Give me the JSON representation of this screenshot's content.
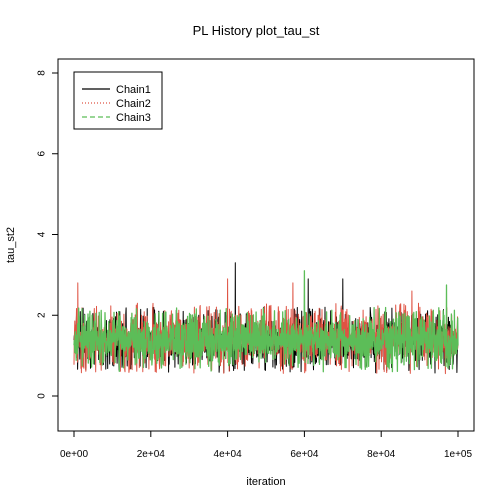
{
  "chart_data": {
    "type": "line",
    "title": "PL History plot_tau_st",
    "xlabel": "iteration",
    "ylabel": "tau_st2",
    "xlim": [
      0,
      100000
    ],
    "ylim": [
      0,
      8
    ],
    "xticks": [
      0,
      20000,
      40000,
      60000,
      80000,
      100000
    ],
    "xtick_labels": [
      "0e+00",
      "2e+04",
      "4e+04",
      "6e+04",
      "8e+04",
      "1e+05"
    ],
    "yticks": [
      0,
      2,
      4,
      6,
      8
    ],
    "ytick_labels": [
      "0",
      "2",
      "4",
      "6",
      "8"
    ],
    "grid": false,
    "legend_position": "top-left",
    "series": [
      {
        "name": "Chain1",
        "color": "#000000",
        "style": "solid",
        "mean": 1.25,
        "typical_range": [
          0.55,
          2.2
        ],
        "peaks": [
          {
            "x": 2000,
            "y": 1.75
          },
          {
            "x": 42000,
            "y": 3.3
          },
          {
            "x": 61000,
            "y": 2.9
          },
          {
            "x": 70000,
            "y": 2.9
          }
        ]
      },
      {
        "name": "Chain2",
        "color": "#df5343",
        "style": "dotted",
        "mean": 1.25,
        "typical_range": [
          0.55,
          2.3
        ],
        "peaks": [
          {
            "x": 1000,
            "y": 2.8
          },
          {
            "x": 40000,
            "y": 2.9
          },
          {
            "x": 57000,
            "y": 2.8
          },
          {
            "x": 88000,
            "y": 2.6
          }
        ]
      },
      {
        "name": "Chain3",
        "color": "#5cbd58",
        "style": "dashed",
        "mean": 1.25,
        "typical_range": [
          0.6,
          2.2
        ],
        "peaks": [
          {
            "x": 60000,
            "y": 3.1
          },
          {
            "x": 97000,
            "y": 2.75
          }
        ]
      }
    ]
  }
}
